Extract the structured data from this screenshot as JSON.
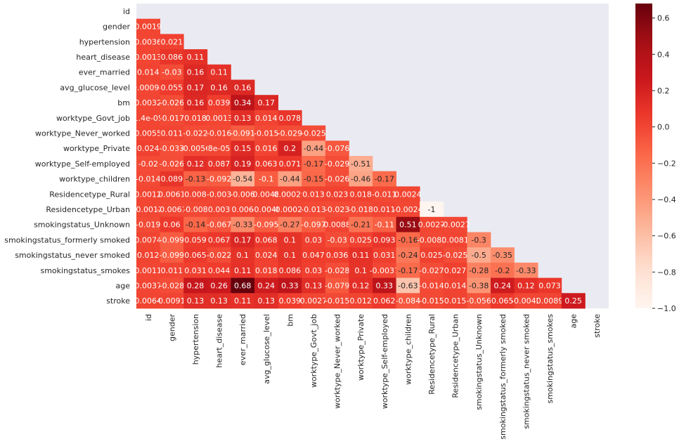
{
  "chart_data": {
    "type": "heatmap",
    "title": "",
    "variables": [
      "id",
      "gender",
      "hypertension",
      "heart_disease",
      "ever_married",
      "avg_glucose_level",
      "bm",
      "worktype_Govt_job",
      "worktype_Never_worked",
      "worktype_Private",
      "worktype_Self-employed",
      "worktype_children",
      "Residencetype_Rural",
      "Residencetype_Urban",
      "smokingstatus_Unknown",
      "smokingstatus_formerly smoked",
      "smokingstatus_never smoked",
      "smokingstatus_smokes",
      "age",
      "stroke"
    ],
    "mask": "upper-triangle-including-diagonal",
    "lower_triangle": [
      [],
      [
        "0.0019"
      ],
      [
        "0.0036",
        "0.021"
      ],
      [
        "0.0013",
        "0.086",
        "0.11"
      ],
      [
        "0.014",
        "-0.03",
        "0.16",
        "0.11"
      ],
      [
        "0.00094",
        "0.055",
        "0.17",
        "0.16",
        "0.16"
      ],
      [
        "0.0032",
        "-0.026",
        "0.16",
        "0.039",
        "0.34",
        "0.17"
      ],
      [
        "1.4e-05",
        "-0.017",
        "0.018",
        "0.0013",
        "0.13",
        "0.014",
        "0.078"
      ],
      [
        "0.0055",
        "0.011",
        "-0.022",
        "-0.016",
        "-0.091",
        "-0.015",
        "-0.029",
        "-0.025"
      ],
      [
        "0.024",
        "-0.033",
        "-0.0056",
        "8e-05",
        "0.15",
        "0.016",
        "0.2",
        "-0.44",
        "-0.076"
      ],
      [
        "-0.02",
        "-0.026",
        "0.12",
        "0.087",
        "0.19",
        "0.063",
        "0.071",
        "-0.17",
        "-0.029",
        "-0.51"
      ],
      [
        "-0.014",
        "0.089",
        "-0.13",
        "-0.092",
        "-0.54",
        "-0.1",
        "-0.44",
        "-0.15",
        "-0.026",
        "-0.46",
        "-0.17"
      ],
      [
        "0.0012",
        "0.0061",
        "0.008",
        "-0.003",
        "-0.006",
        "0.0048",
        "0.00029",
        "0.013",
        "0.023",
        "0.018",
        "-0.011",
        "0.0024"
      ],
      [
        "-0.0012",
        "-0.0061",
        "-0.008",
        "0.003",
        "0.006",
        "-0.0048",
        "-0.00029",
        "-0.013",
        "-0.023",
        "-0.018",
        "0.011",
        "-0.0024",
        "-1"
      ],
      [
        "-0.019",
        "0.06",
        "-0.14",
        "-0.067",
        "-0.33",
        "-0.095",
        "-0.27",
        "-0.097",
        "0.0088",
        "-0.21",
        "-0.11",
        "0.51",
        "0.0027",
        "-0.0027"
      ],
      [
        "0.0074",
        "-0.099",
        "0.059",
        "0.067",
        "0.17",
        "0.068",
        "0.1",
        "0.03",
        "-0.03",
        "0.025",
        "0.093",
        "-0.16",
        "-0.0081",
        "0.0081",
        "-0.3"
      ],
      [
        "0.012",
        "-0.099",
        "0.065",
        "-0.022",
        "0.1",
        "0.024",
        "0.1",
        "0.047",
        "0.036",
        "0.11",
        "0.031",
        "-0.24",
        "0.025",
        "-0.025",
        "-0.5",
        "-0.35"
      ],
      [
        "0.0011",
        "0.011",
        "0.031",
        "0.044",
        "0.11",
        "0.018",
        "0.086",
        "0.03",
        "-0.028",
        "0.1",
        "-0.0037",
        "-0.17",
        "-0.027",
        "0.027",
        "-0.28",
        "-0.2",
        "-0.33"
      ],
      [
        "0.0037",
        "-0.028",
        "0.28",
        "0.26",
        "0.68",
        "0.24",
        "0.33",
        "0.13",
        "-0.079",
        "0.12",
        "0.33",
        "-0.63",
        "-0.014",
        "0.014",
        "-0.38",
        "0.24",
        "0.12",
        "0.073"
      ],
      [
        "0.0064",
        "0.0091",
        "0.13",
        "0.13",
        "0.11",
        "0.13",
        "0.039",
        "0.0027",
        "-0.015",
        "0.012",
        "0.062",
        "-0.084",
        "-0.015",
        "0.015",
        "-0.056",
        "0.065",
        "-0.0042",
        "0.0089",
        "0.25"
      ]
    ],
    "colorbar": {
      "min": -1.0,
      "max": 0.68,
      "ticks": [
        "0.6",
        "0.4",
        "0.2",
        "0.0",
        "−0.2",
        "−0.4",
        "−0.6",
        "−0.8",
        "−1.0"
      ],
      "tick_values": [
        0.6,
        0.4,
        0.2,
        0.0,
        -0.2,
        -0.4,
        -0.6,
        -0.8,
        -1.0
      ],
      "colormap": "Reds"
    },
    "colors": {
      "masked_background": "#eaeaf2",
      "low": "#fff5f0",
      "high": "#67000d"
    }
  }
}
